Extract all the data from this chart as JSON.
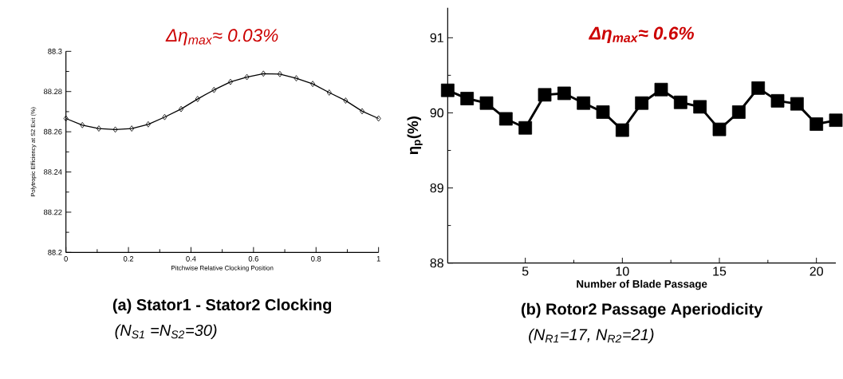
{
  "chart_data": [
    {
      "type": "line",
      "title": "(a) Stator1 - Stator2 Clocking",
      "annotations": [
        "Δη$_{max}$≈ 0.03%",
        "(N$_{S1}$ =N$_{S2}$=30)"
      ],
      "xlabel": "Pitchwise Relative Clocking Position",
      "ylabel": "Polytropic Efficiency at S2 Exit (%)",
      "x": [
        0,
        0.0526,
        0.1053,
        0.1579,
        0.2105,
        0.2632,
        0.3158,
        0.3684,
        0.4211,
        0.4737,
        0.5263,
        0.5789,
        0.6316,
        0.6842,
        0.7368,
        0.7895,
        0.8421,
        0.8947,
        0.9474,
        1
      ],
      "values": [
        88.2666,
        88.2633,
        88.2616,
        88.2611,
        88.2616,
        88.2637,
        88.2673,
        88.2713,
        88.2763,
        88.2808,
        88.2848,
        88.2872,
        88.2889,
        88.2887,
        88.2866,
        88.2838,
        88.2795,
        88.2755,
        88.2702,
        88.2666
      ],
      "color": "#000000",
      "marker": "diamond",
      "xlim": [
        0,
        1
      ],
      "ylim": [
        88.2,
        88.3
      ],
      "xticks": [
        0,
        0.2,
        0.4,
        0.6,
        0.8,
        1
      ],
      "yticks": [
        88.2,
        88.22,
        88.24,
        88.26,
        88.28,
        88.3
      ]
    },
    {
      "type": "line",
      "title": "(b) Rotor2  Passage Aperiodicity",
      "annotations": [
        "Δη$_{max}$≈ 0.6%",
        "(N$_{R1}$=17, N$_{R2}$=21)"
      ],
      "xlabel": "Number of Blade Passage",
      "ylabel": "η$_{p}$(%)",
      "x": [
        1,
        2,
        3,
        4,
        5,
        6,
        7,
        8,
        9,
        10,
        11,
        12,
        13,
        14,
        15,
        16,
        17,
        18,
        19,
        20,
        21
      ],
      "values": [
        90.3,
        90.19,
        90.13,
        89.92,
        89.8,
        90.24,
        90.26,
        90.13,
        90.01,
        89.77,
        90.13,
        90.31,
        90.14,
        90.08,
        89.78,
        90.01,
        90.33,
        90.16,
        90.12,
        89.85,
        89.9
      ],
      "color": "#000000",
      "marker": "square",
      "xlim": [
        1,
        21
      ],
      "ylim": [
        88,
        91.4
      ],
      "xticks": [
        5,
        10,
        15,
        20
      ],
      "yticks": [
        88,
        89,
        90,
        91
      ]
    }
  ]
}
